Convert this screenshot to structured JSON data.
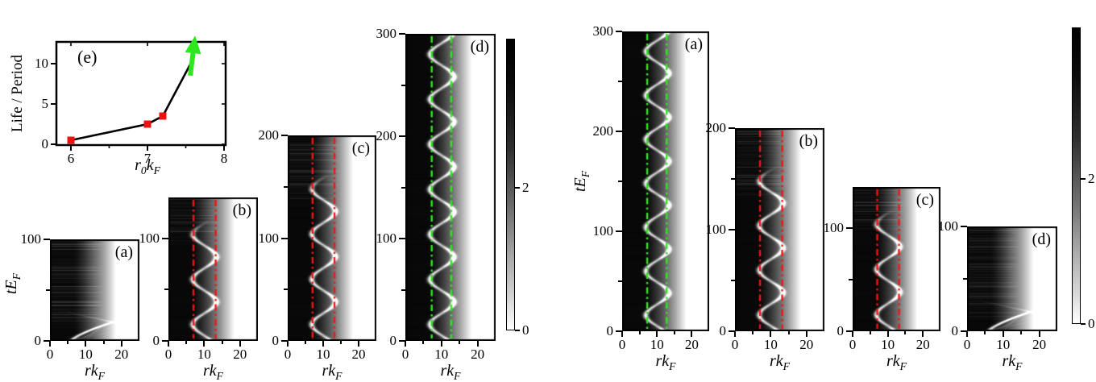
{
  "figure": {
    "background": "#ffffff",
    "description": "Grayscale space-time density plots of an oscillating dark soliton with inset life/period plot",
    "colors": {
      "red_guide": "#f21414",
      "green_guide": "#2ce81c",
      "marker_red": "#ee1111",
      "arrow_green": "#2ce81c",
      "axis_black": "#000000"
    }
  },
  "chart_data": [
    {
      "id": "inset-panel-e",
      "type": "line",
      "label": "(e)",
      "xlabel": "r_0k_F",
      "ylabel": "Life / Period",
      "xticks": [
        6,
        7,
        8
      ],
      "yticks": [
        0,
        5,
        10
      ],
      "xlim": [
        5.8,
        8.05
      ],
      "ylim": [
        0,
        12.8
      ],
      "grid": false,
      "series": [
        {
          "name": "life-over-period",
          "marker": "red-square",
          "line_color": "#000000",
          "x": [
            6.0,
            7.0,
            7.2
          ],
          "y": [
            0.5,
            2.5,
            3.5
          ]
        }
      ],
      "line_extends_to": {
        "x": 7.58,
        "y": 10.3
      },
      "arrow": {
        "x": 7.6,
        "direction": "up",
        "color": "#2ce81c",
        "meaning": "lifetime diverges"
      }
    },
    {
      "id": "left-heatmap-group",
      "type": "heatmap-group",
      "xlabel": "rk_F",
      "ylabel": "tE_F",
      "xlim": [
        0,
        25
      ],
      "xticks": [
        0,
        10,
        20
      ],
      "colorbar": {
        "gradient": "black(top) to white(bottom)",
        "ticks": [
          {
            "label": "2",
            "pos": 0.49
          },
          {
            "label": "0",
            "pos": 0
          }
        ]
      },
      "panels": [
        {
          "label": "(a)",
          "t_max": 100,
          "yticks": [
            0,
            100
          ],
          "trajectory": "decaying",
          "life": 25,
          "period": null,
          "lines": null,
          "seed": 1
        },
        {
          "label": "(b)",
          "t_max": 140,
          "yticks": [
            0,
            100
          ],
          "trajectory": "oscillating",
          "life": 118,
          "period": 44,
          "lines": {
            "color": "#f21414",
            "r": [
              7.0,
              13.2
            ]
          },
          "seed": 2
        },
        {
          "label": "(c)",
          "t_max": 200,
          "yticks": [
            0,
            100,
            200
          ],
          "trajectory": "oscillating",
          "life": 162,
          "period": 44,
          "lines": {
            "color": "#f21414",
            "r": [
              7.0,
              13.2
            ]
          },
          "seed": 3
        },
        {
          "label": "(d)",
          "t_max": 300,
          "yticks": [
            0,
            100,
            200,
            300
          ],
          "trajectory": "oscillating",
          "life": 300,
          "period": 44,
          "lines": {
            "color": "#2ce81c",
            "r": [
              7.3,
              12.7
            ]
          },
          "seed": 4
        }
      ]
    },
    {
      "id": "right-heatmap-group",
      "type": "heatmap-group",
      "xlabel": "rk_F",
      "ylabel": "tE_F",
      "xlim": [
        0,
        25
      ],
      "xticks": [
        0,
        10,
        20
      ],
      "colorbar": {
        "gradient": "black(top) to white(bottom)",
        "ticks": [
          {
            "label": "2",
            "pos": 0.49
          },
          {
            "label": "0",
            "pos": 0
          }
        ]
      },
      "panels": [
        {
          "label": "(a)",
          "t_max": 300,
          "yticks": [
            0,
            100,
            200,
            300
          ],
          "trajectory": "oscillating",
          "life": 300,
          "period": 44,
          "lines": {
            "color": "#2ce81c",
            "r": [
              7.2,
              12.8
            ]
          },
          "seed": 5
        },
        {
          "label": "(b)",
          "t_max": 200,
          "yticks": [
            0,
            100,
            200
          ],
          "trajectory": "oscillating",
          "life": 162,
          "period": 44,
          "lines": {
            "color": "#f21414",
            "r": [
              7.0,
              13.2
            ]
          },
          "seed": 6
        },
        {
          "label": "(c)",
          "t_max": 140,
          "yticks": [
            0,
            100
          ],
          "trajectory": "oscillating",
          "life": 118,
          "period": 44,
          "lines": {
            "color": "#f21414",
            "r": [
              7.0,
              13.2
            ]
          },
          "seed": 7
        },
        {
          "label": "(d)",
          "t_max": 100,
          "yticks": [
            0,
            100
          ],
          "trajectory": "decaying",
          "life": 25,
          "period": null,
          "lines": null,
          "seed": 8
        }
      ]
    }
  ]
}
